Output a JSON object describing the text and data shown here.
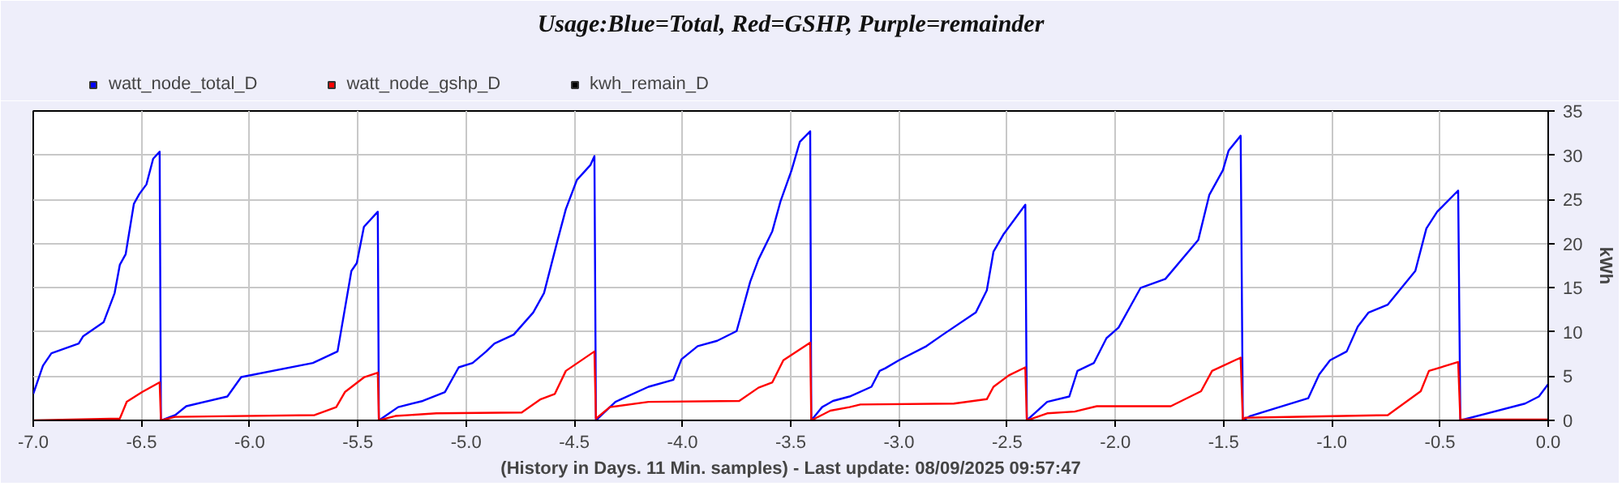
{
  "chart_data": {
    "type": "line",
    "title": "Usage:Blue=Total, Red=GSHP, Purple=remainder",
    "xlabel": "(History in Days. 11 Min. samples) - Last update: 08/09/2025 09:57:47",
    "ylabel": "kWh",
    "xlim": [
      -7,
      0
    ],
    "xticks": [
      {
        "value": -7,
        "label": "-7.0"
      },
      {
        "value": -6.5,
        "label": "-6.5"
      },
      {
        "value": -6,
        "label": "-6.0"
      },
      {
        "value": -5.5,
        "label": "-5.5"
      },
      {
        "value": -5,
        "label": "-5.0"
      },
      {
        "value": -4.5,
        "label": "-4.5"
      },
      {
        "value": -4,
        "label": "-4.0"
      },
      {
        "value": -3.5,
        "label": "-3.5"
      },
      {
        "value": -3,
        "label": "-3.0"
      },
      {
        "value": -2.5,
        "label": "-2.5"
      },
      {
        "value": -2,
        "label": "-2.0"
      },
      {
        "value": -1.5,
        "label": "-1.5"
      },
      {
        "value": -1,
        "label": "-1.0"
      },
      {
        "value": -0.5,
        "label": "-0.5"
      },
      {
        "value": 0,
        "label": "0.0"
      }
    ],
    "ylim": [
      0,
      35
    ],
    "yticks": [
      0,
      5,
      10,
      15,
      20,
      25,
      30,
      35
    ],
    "grid": true,
    "legend": "top left",
    "series": [
      {
        "name": "watt_node_total_D",
        "color": "#0000ff",
        "x": [
          -7,
          -6.955,
          -6.916,
          -6.79,
          -6.77,
          -6.675,
          -6.624,
          -6.6,
          -6.573,
          -6.535,
          -6.51,
          -6.477,
          -6.446,
          -6.416,
          -6.41,
          -6.344,
          -6.293,
          -6.103,
          -6.039,
          -5.708,
          -5.594,
          -5.53,
          -5.505,
          -5.472,
          -5.408,
          -5.403,
          -5.314,
          -5.2,
          -5.098,
          -5.034,
          -4.97,
          -4.907,
          -4.869,
          -4.78,
          -4.69,
          -4.64,
          -4.577,
          -4.539,
          -4.488,
          -4.425,
          -4.407,
          -4.4,
          -4.31,
          -4.157,
          -4.042,
          -4.005,
          -3.93,
          -3.84,
          -3.75,
          -3.687,
          -3.649,
          -3.585,
          -3.547,
          -3.496,
          -3.458,
          -3.41,
          -3.405,
          -3.355,
          -3.305,
          -3.228,
          -3.127,
          -3.089,
          -3.063,
          -3.0,
          -2.873,
          -2.797,
          -2.645,
          -2.594,
          -2.563,
          -2.518,
          -2.416,
          -2.409,
          -2.315,
          -2.213,
          -2.175,
          -2.099,
          -2.041,
          -1.985,
          -1.883,
          -1.769,
          -1.617,
          -1.566,
          -1.503,
          -1.477,
          -1.421,
          -1.411,
          -1.376,
          -1.109,
          -1.058,
          -1.008,
          -0.931,
          -0.88,
          -0.83,
          -0.741,
          -0.614,
          -0.563,
          -0.513,
          -0.416,
          -0.406,
          -0.107,
          -0.043,
          0
        ],
        "values": [
          3.0,
          6.2,
          7.6,
          8.7,
          9.5,
          11.1,
          14.4,
          17.6,
          18.8,
          24.5,
          25.6,
          26.7,
          29.6,
          30.4,
          0,
          0.6,
          1.6,
          2.7,
          4.9,
          6.5,
          7.8,
          16.9,
          17.8,
          21.9,
          23.6,
          0,
          1.5,
          2.2,
          3.2,
          6.0,
          6.5,
          7.8,
          8.7,
          9.7,
          12.2,
          14.4,
          20.4,
          23.9,
          27.2,
          28.9,
          29.9,
          0,
          2.1,
          3.8,
          4.6,
          6.9,
          8.4,
          9.0,
          10.1,
          15.7,
          18.2,
          21.4,
          24.8,
          28.3,
          31.5,
          32.7,
          0,
          1.5,
          2.2,
          2.7,
          3.8,
          5.6,
          5.9,
          6.8,
          8.4,
          9.7,
          12.2,
          14.7,
          19.1,
          21.0,
          24.4,
          0,
          2.1,
          2.7,
          5.6,
          6.5,
          9.3,
          10.5,
          15.0,
          16.0,
          20.4,
          25.5,
          28.3,
          30.5,
          32.2,
          0,
          0.5,
          2.5,
          5.2,
          6.8,
          7.8,
          10.6,
          12.2,
          13.1,
          16.9,
          21.7,
          23.6,
          26.0,
          0,
          1.9,
          2.7,
          4.1
        ]
      },
      {
        "name": "watt_node_gshp_D",
        "color": "#ff0000",
        "x": [
          -7,
          -6.6,
          -6.568,
          -6.497,
          -6.416,
          -6.41,
          -6.344,
          -5.7,
          -5.6,
          -5.56,
          -5.47,
          -5.408,
          -5.403,
          -5.327,
          -5.137,
          -4.743,
          -4.655,
          -4.59,
          -4.539,
          -4.407,
          -4.4,
          -4.336,
          -4.157,
          -3.738,
          -3.649,
          -3.585,
          -3.534,
          -3.41,
          -3.405,
          -3.317,
          -3.228,
          -3.178,
          -2.746,
          -2.594,
          -2.563,
          -2.492,
          -2.416,
          -2.409,
          -2.315,
          -2.188,
          -2.086,
          -1.744,
          -1.604,
          -1.553,
          -1.421,
          -1.411,
          -1.401,
          -0.741,
          -0.589,
          -0.551,
          -0.416,
          -0.406,
          0
        ],
        "values": [
          0,
          0.2,
          2.1,
          3.2,
          4.3,
          0,
          0.4,
          0.6,
          1.5,
          3.2,
          4.9,
          5.4,
          0,
          0.5,
          0.8,
          0.9,
          2.4,
          3.0,
          5.6,
          7.8,
          0.2,
          1.5,
          2.1,
          2.2,
          3.7,
          4.3,
          6.8,
          8.8,
          0,
          1.1,
          1.5,
          1.8,
          1.9,
          2.4,
          3.8,
          5.1,
          6.0,
          0,
          0.8,
          1.0,
          1.6,
          1.6,
          3.3,
          5.6,
          7.1,
          0,
          0.3,
          0.6,
          3.3,
          5.6,
          6.6,
          0.1,
          0.1
        ]
      },
      {
        "name": "kwh_remain_D",
        "color": "#000000"
      }
    ]
  }
}
